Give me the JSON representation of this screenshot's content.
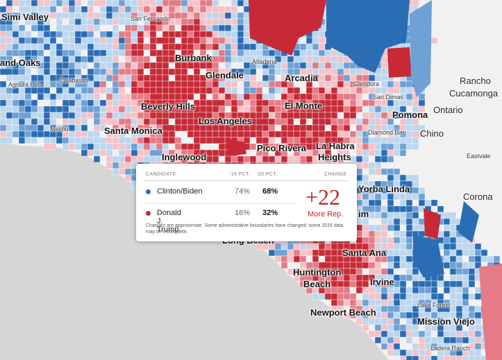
{
  "colors": {
    "ocean": "#d6d6d6",
    "land": "#f1f1f1",
    "dem_strong": "#2a6db5",
    "dem_mid": "#6ea1d4",
    "dem_light": "#bcd6ee",
    "rep_strong": "#c72a36",
    "rep_mid": "#e47b86",
    "rep_light": "#f4c3c8"
  },
  "places": [
    {
      "label": "Simi Valley",
      "cls": "big"
    },
    {
      "label": "San Fernando",
      "cls": "small"
    },
    {
      "label": "and Oaks",
      "cls": "big"
    },
    {
      "label": "Burbank",
      "cls": "big"
    },
    {
      "label": "Altadena",
      "cls": "small"
    },
    {
      "label": "Agoura Hills",
      "cls": "small"
    },
    {
      "label": "Calabasas",
      "cls": "small"
    },
    {
      "label": "Glendale",
      "cls": "big"
    },
    {
      "label": "Arcadia",
      "cls": "big"
    },
    {
      "label": "Glendora",
      "cls": "small"
    },
    {
      "label": "Rancho",
      "cls": "mid"
    },
    {
      "label": "Cucamonga",
      "cls": "mid"
    },
    {
      "label": "San Dimas",
      "cls": "small"
    },
    {
      "label": "Beverly Hills",
      "cls": "big"
    },
    {
      "label": "El Monte",
      "cls": "big"
    },
    {
      "label": "Pomona",
      "cls": "big"
    },
    {
      "label": "Ontario",
      "cls": "mid"
    },
    {
      "label": "Malibu",
      "cls": "small"
    },
    {
      "label": "Santa Monica",
      "cls": "big"
    },
    {
      "label": "Los Angeles",
      "cls": "big"
    },
    {
      "label": "Diamond Bar",
      "cls": "small"
    },
    {
      "label": "Chino",
      "cls": "mid"
    },
    {
      "label": "Pico Rivera",
      "cls": "big"
    },
    {
      "label": "La Habra",
      "cls": "big"
    },
    {
      "label": "Heights",
      "cls": "big"
    },
    {
      "label": "Inglewood",
      "cls": "big"
    },
    {
      "label": "Eastvale",
      "cls": "small"
    },
    {
      "label": "Yorba Linda",
      "cls": "big"
    },
    {
      "label": "Corona",
      "cls": "mid"
    },
    {
      "label": "im",
      "cls": "big"
    },
    {
      "label": "Long Beach",
      "cls": "big"
    },
    {
      "label": "Santa Ana",
      "cls": "big"
    },
    {
      "label": "Huntington",
      "cls": "big"
    },
    {
      "label": "Beach",
      "cls": "big"
    },
    {
      "label": "Irvine",
      "cls": "big"
    },
    {
      "label": "Lake Forest",
      "cls": "small"
    },
    {
      "label": "Newport Beach",
      "cls": "big"
    },
    {
      "label": "Mission Viejo",
      "cls": "big"
    },
    {
      "label": "Ladera Ranch",
      "cls": "small"
    }
  ],
  "tooltip": {
    "headers": {
      "candidate": "CANDIDATE",
      "pct16": "'16 PCT.",
      "pct20": "'20 PCT.",
      "change": "CHANGE"
    },
    "rows": [
      {
        "candidate": "Clinton/Biden",
        "pct16": "74%",
        "pct20": "68%",
        "color": "#2a6db5"
      },
      {
        "candidate": "Donald J. Trump",
        "pct16": "16%",
        "pct20": "32%",
        "color": "#c72a36"
      }
    ],
    "change_value": "+22",
    "change_label": "More Rep.",
    "note": "Changes are approximate. Some administrative boundaries have changed; some 2016 data may be incomplete."
  }
}
